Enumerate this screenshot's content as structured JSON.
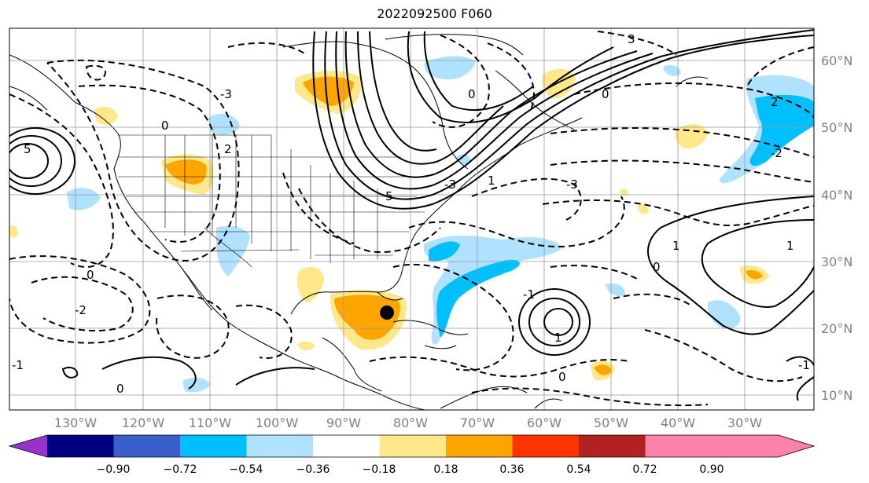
{
  "title": "2022092500 F060",
  "lon_labels": [
    "130°W",
    "120°W",
    "110°W",
    "100°W",
    "90°W",
    "80°W",
    "70°W",
    "60°W",
    "50°W",
    "40°W",
    "30°W"
  ],
  "lat_labels": [
    "60°N",
    "50°N",
    "40°N",
    "30°N",
    "20°N",
    "10°N"
  ],
  "colorbar": {
    "colors": [
      "#9932cc",
      "#000080",
      "#3a5fcd",
      "#00bfff",
      "#b0e2ff",
      "#ffffff",
      "#ffe88a",
      "#ffa500",
      "#ff3300",
      "#b22222",
      "#ff82ab"
    ],
    "ticks": [
      "−0.90",
      "−0.72",
      "−0.54",
      "−0.36",
      "−0.18",
      "0.18",
      "0.36",
      "0.54",
      "0.72",
      "0.90"
    ]
  },
  "contour_labels": [
    "3",
    "0",
    "2",
    "0",
    "5",
    "5",
    "0",
    "-3",
    "2",
    "-2",
    "0",
    "1",
    "-3",
    "1",
    "0",
    "1",
    "-1",
    "-1",
    "-2",
    "-3",
    "1",
    "0",
    "0",
    "-1"
  ]
}
